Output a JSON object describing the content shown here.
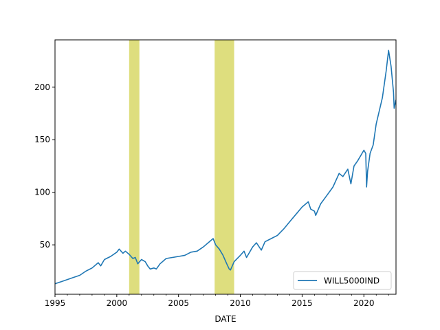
{
  "chart_data": {
    "type": "line",
    "title": "",
    "xlabel": "DATE",
    "ylabel": "",
    "xlim": [
      1995,
      2022.6
    ],
    "ylim": [
      3,
      245
    ],
    "x_ticks": [
      1995,
      2000,
      2005,
      2010,
      2015,
      2020
    ],
    "x_tick_labels": [
      "1995",
      "2000",
      "2005",
      "2010",
      "2015",
      "2020"
    ],
    "y_ticks": [
      50,
      100,
      150,
      200
    ],
    "y_tick_labels": [
      "50",
      "100",
      "150",
      "200"
    ],
    "grid": false,
    "legend_position": "lower-right",
    "line_color": "#1f77b4",
    "shade_color": "#dede7e",
    "recessions": [
      {
        "start": 2001.0,
        "end": 2001.83
      },
      {
        "start": 2007.92,
        "end": 2009.5
      }
    ],
    "series": [
      {
        "name": "WILL5000IND",
        "x": [
          1995.0,
          1995.5,
          1996.0,
          1996.5,
          1997.0,
          1997.5,
          1998.0,
          1998.5,
          1998.7,
          1999.0,
          1999.5,
          2000.0,
          2000.2,
          2000.5,
          2000.7,
          2001.0,
          2001.3,
          2001.5,
          2001.7,
          2002.0,
          2002.3,
          2002.5,
          2002.7,
          2003.0,
          2003.2,
          2003.5,
          2004.0,
          2004.5,
          2005.0,
          2005.5,
          2006.0,
          2006.5,
          2007.0,
          2007.5,
          2007.8,
          2008.0,
          2008.3,
          2008.6,
          2008.9,
          2009.1,
          2009.2,
          2009.5,
          2010.0,
          2010.3,
          2010.5,
          2011.0,
          2011.3,
          2011.7,
          2012.0,
          2012.5,
          2013.0,
          2013.5,
          2014.0,
          2014.5,
          2015.0,
          2015.5,
          2015.7,
          2016.0,
          2016.1,
          2016.5,
          2017.0,
          2017.5,
          2018.0,
          2018.3,
          2018.7,
          2018.95,
          2019.2,
          2019.5,
          2020.0,
          2020.15,
          2020.22,
          2020.3,
          2020.5,
          2020.75,
          2021.0,
          2021.5,
          2021.8,
          2022.0,
          2022.2,
          2022.4,
          2022.45,
          2022.6
        ],
        "values": [
          13,
          15,
          17,
          19,
          21,
          25,
          28,
          33,
          30,
          36,
          39,
          43,
          46,
          42,
          44,
          41,
          37,
          38,
          32,
          36,
          34,
          30,
          27,
          28,
          27,
          32,
          37,
          38,
          39,
          40,
          43,
          44,
          48,
          53,
          56,
          50,
          46,
          40,
          32,
          27,
          26,
          34,
          40,
          44,
          38,
          48,
          52,
          45,
          53,
          56,
          59,
          65,
          72,
          79,
          86,
          91,
          84,
          82,
          78,
          89,
          97,
          105,
          118,
          115,
          122,
          108,
          125,
          130,
          140,
          137,
          105,
          120,
          137,
          145,
          165,
          190,
          215,
          235,
          220,
          195,
          180,
          188
        ]
      }
    ]
  }
}
